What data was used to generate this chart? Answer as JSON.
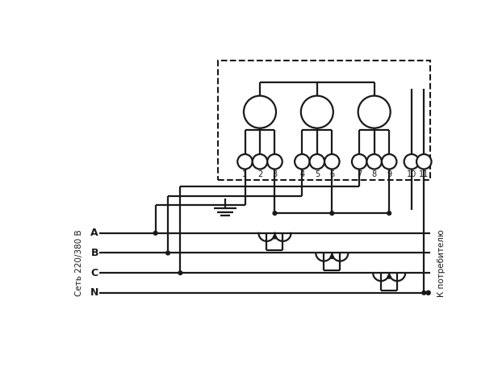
{
  "bg_color": "#ffffff",
  "line_color": "#1a1a1a",
  "lw": 1.6,
  "fig_width": 6.17,
  "fig_height": 4.82,
  "dpi": 100,
  "left_label": "Сеть 220/380 В",
  "right_label": "К потребителю",
  "phase_labels": [
    "A",
    "B",
    "C",
    "N"
  ]
}
